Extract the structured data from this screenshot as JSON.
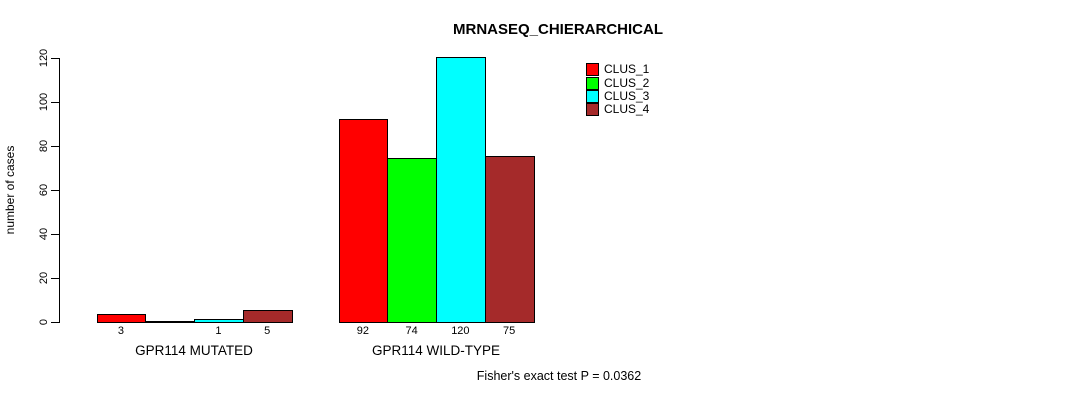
{
  "chart_data": {
    "type": "bar",
    "title": "MRNASEQ_CHIERARCHICAL",
    "ylabel": "number of cases",
    "xlabel": "",
    "ylim": [
      0,
      120
    ],
    "yticks": [
      0,
      20,
      40,
      60,
      80,
      100,
      120
    ],
    "grid": false,
    "legend_position": "top-right-inside",
    "categories": [
      "GPR114 MUTATED",
      "GPR114 WILD-TYPE"
    ],
    "groups": [
      {
        "label": "GPR114 MUTATED",
        "values": [
          3,
          0,
          1,
          5
        ],
        "value_labels": [
          "3",
          "",
          "1",
          "5"
        ]
      },
      {
        "label": "GPR114 WILD-TYPE",
        "values": [
          92,
          74,
          120,
          75
        ],
        "value_labels": [
          "92",
          "74",
          "120",
          "75"
        ]
      }
    ],
    "series": [
      {
        "name": "CLUS_1",
        "color": "#ff0000"
      },
      {
        "name": "CLUS_2",
        "color": "#00ff00"
      },
      {
        "name": "CLUS_3",
        "color": "#00ffff"
      },
      {
        "name": "CLUS_4",
        "color": "#a52a2a"
      }
    ],
    "footnote": "Fisher's exact test P = 0.0362"
  }
}
